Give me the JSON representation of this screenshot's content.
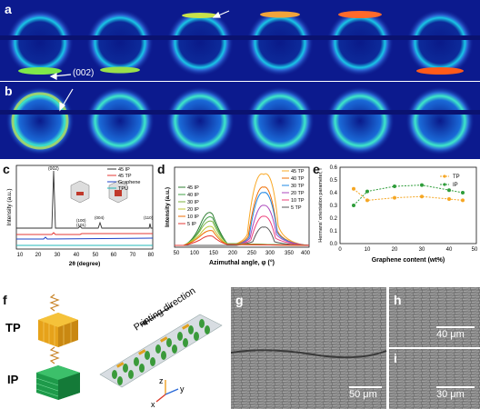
{
  "panels": {
    "a": "a",
    "b": "b",
    "c": "c",
    "d": "d",
    "e": "e",
    "f": "f",
    "g": "g",
    "h": "h",
    "i": "i"
  },
  "saxs": {
    "peak_label": "(002)"
  },
  "chart_c": {
    "type": "line",
    "xlabel": "2θ (degree)",
    "ylabel": "Intensity (a.u.)",
    "xticks": [
      "10",
      "20",
      "30",
      "40",
      "50",
      "60",
      "70",
      "80"
    ],
    "series": [
      {
        "name": "45 IP",
        "color": "#333333"
      },
      {
        "name": "45 TP",
        "color": "#e53935"
      },
      {
        "name": "Graphene",
        "color": "#1e40c8"
      },
      {
        "name": "TPU",
        "color": "#20b8b8"
      }
    ],
    "peaks": [
      "(002)",
      "(100)",
      "(101)",
      "(004)",
      "(110)"
    ]
  },
  "chart_d": {
    "type": "line",
    "xlabel": "Azimuthal angle, φ (°)",
    "ylabel": "Intensity (a.u.)",
    "xticks": [
      "50",
      "100",
      "150",
      "200",
      "250",
      "300",
      "350",
      "400"
    ],
    "ip_series": [
      {
        "name": "45 IP",
        "color": "#2e7d32"
      },
      {
        "name": "40 IP",
        "color": "#43a047"
      },
      {
        "name": "30 IP",
        "color": "#7cb342"
      },
      {
        "name": "20 IP",
        "color": "#c0ca33"
      },
      {
        "name": "10 IP",
        "color": "#ef6c00"
      },
      {
        "name": "5 IP",
        "color": "#e53935"
      }
    ],
    "tp_series": [
      {
        "name": "45 TP",
        "color": "#f9a825"
      },
      {
        "name": "40 TP",
        "color": "#ef6c00"
      },
      {
        "name": "30 TP",
        "color": "#1e88e5"
      },
      {
        "name": "20 TP",
        "color": "#ab47bc"
      },
      {
        "name": "10 TP",
        "color": "#ec407a"
      },
      {
        "name": "5 TP",
        "color": "#555555"
      }
    ]
  },
  "chart_e": {
    "type": "line",
    "xlabel": "Graphene content (wt%)",
    "ylabel": "Hermans' orientation parameter, f",
    "xticks": [
      "0",
      "10",
      "20",
      "30",
      "40",
      "50"
    ],
    "yticks": [
      "0.0",
      "0.1",
      "0.2",
      "0.3",
      "0.4",
      "0.5",
      "0.6"
    ],
    "ylim": [
      0.0,
      0.6
    ],
    "x": [
      5,
      10,
      20,
      30,
      40,
      45
    ],
    "series": [
      {
        "name": "TP",
        "color": "#f5a623",
        "values": [
          0.43,
          0.34,
          0.36,
          0.37,
          0.35,
          0.34
        ]
      },
      {
        "name": "IP",
        "color": "#2e9d3a",
        "values": [
          0.3,
          0.41,
          0.45,
          0.46,
          0.42,
          0.4
        ]
      }
    ]
  },
  "schematic": {
    "tp": "TP",
    "ip": "IP",
    "direction": "Printing direction",
    "axis_z": "z",
    "axis_y": "y",
    "axis_x": "x"
  },
  "sem": {
    "g_scale": "50 μm",
    "h_scale": "40 μm",
    "i_scale": "30 μm"
  }
}
